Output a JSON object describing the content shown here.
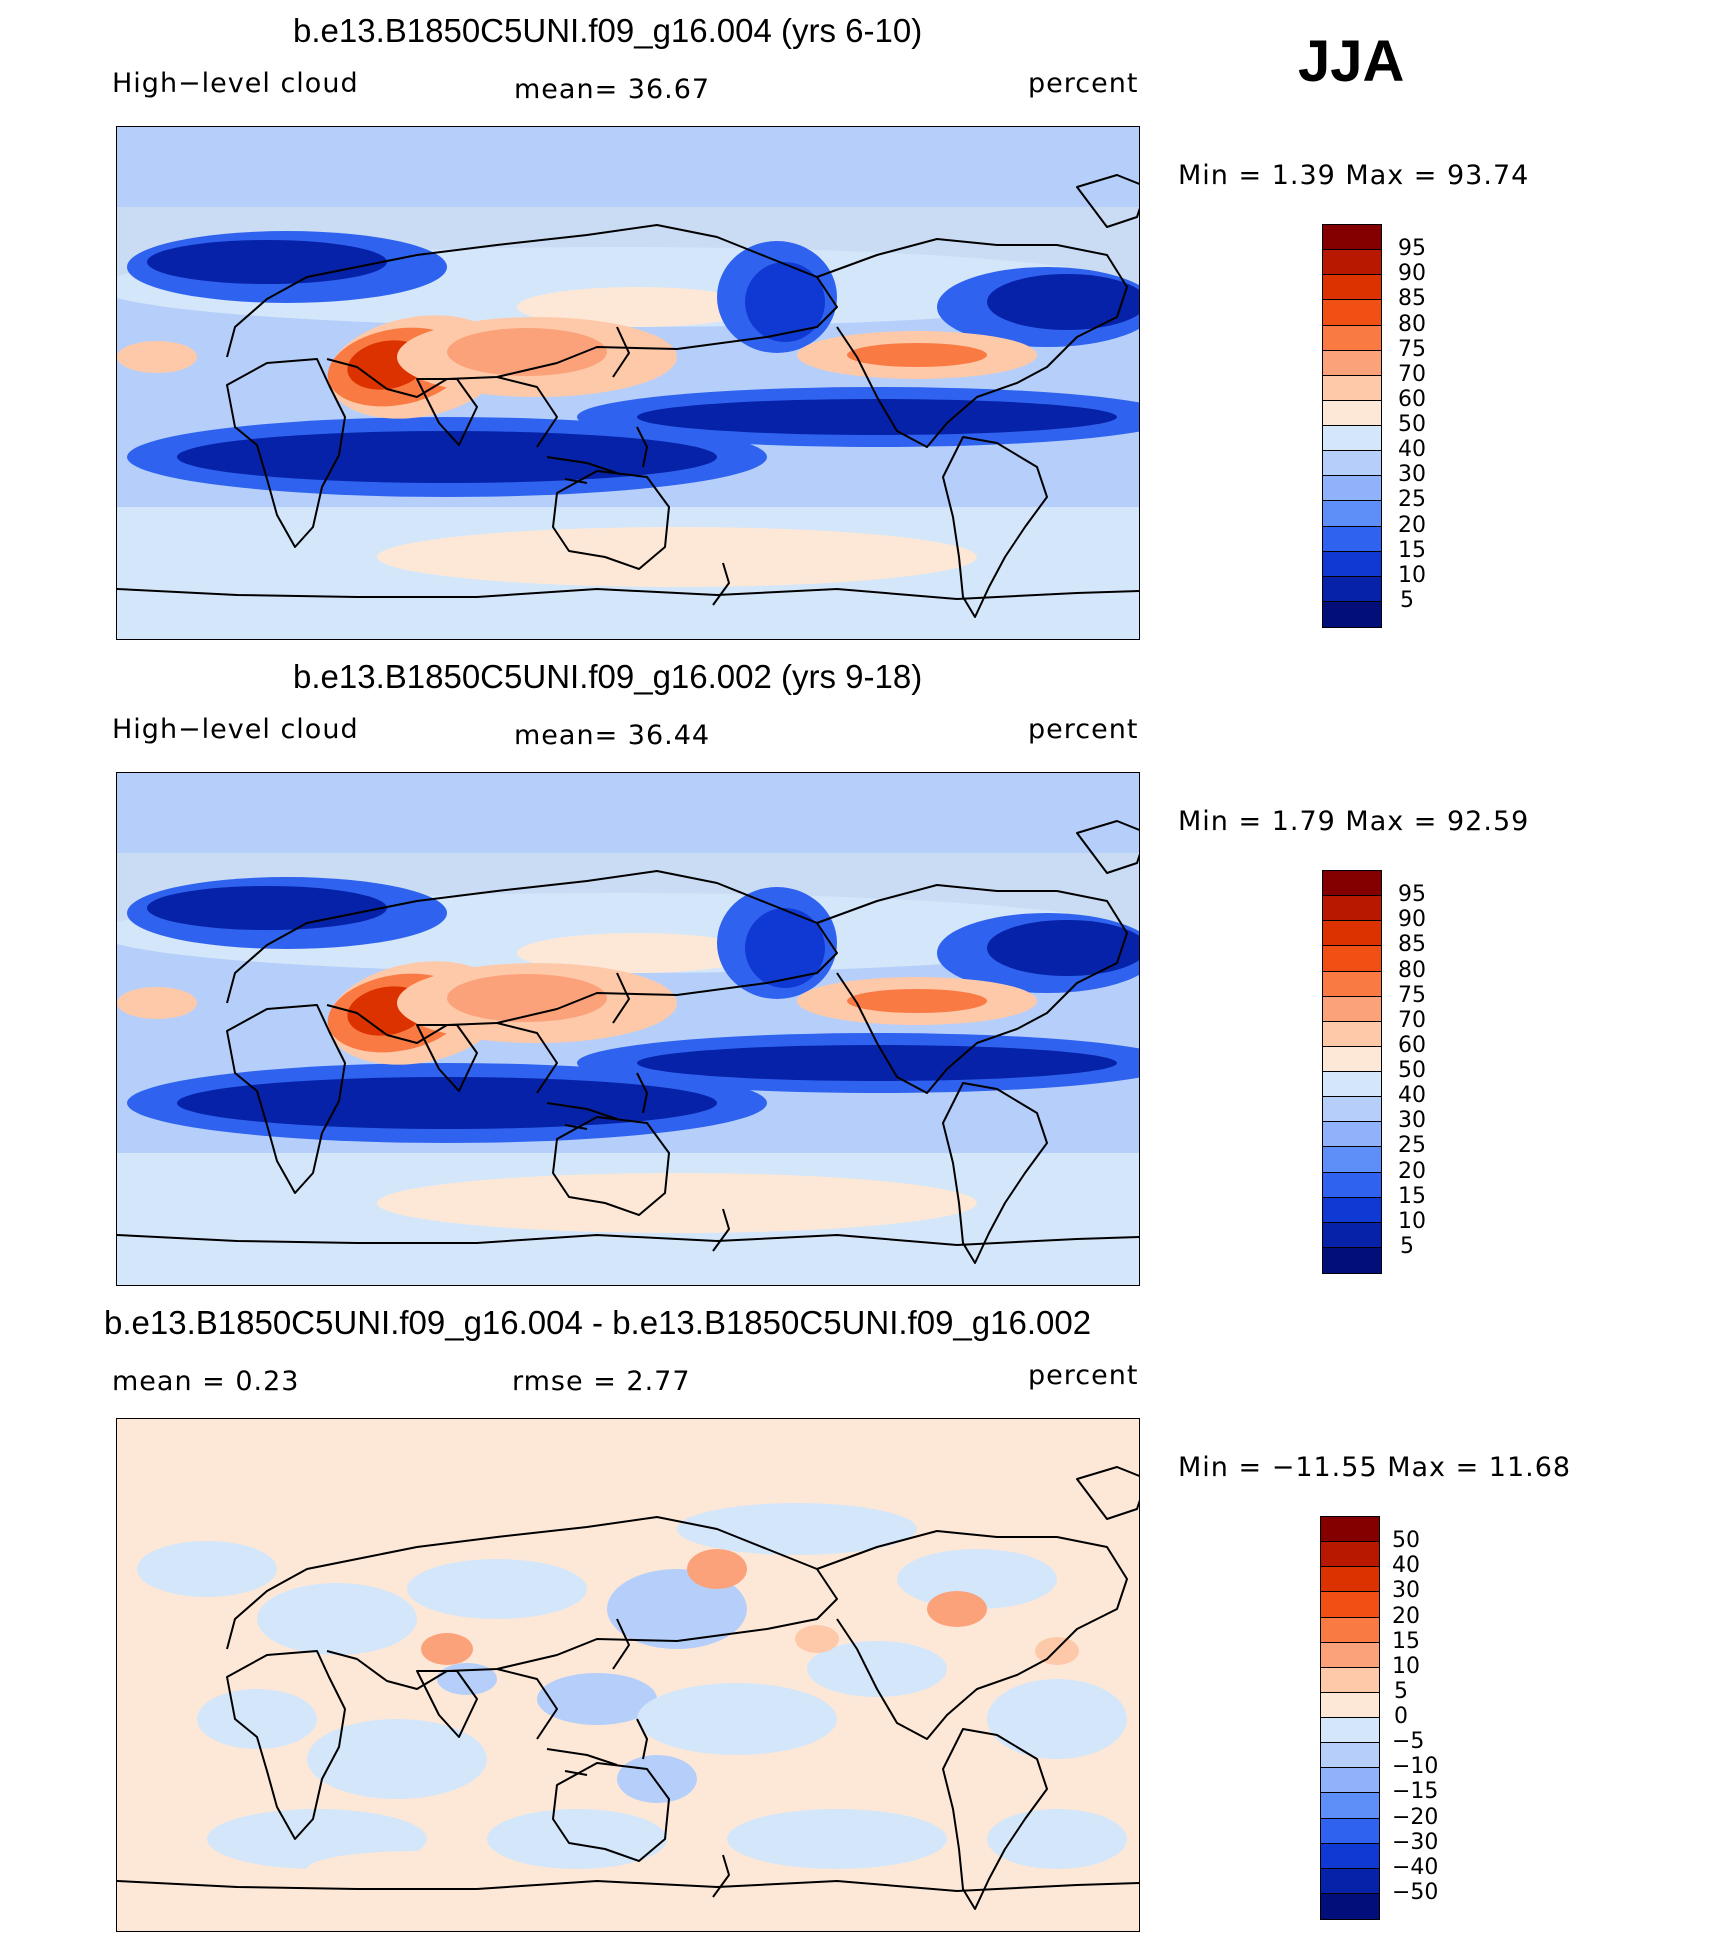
{
  "season": "JJA",
  "panels": [
    {
      "title": "b.e13.B1850C5UNI.f09_g16.004 (yrs 6-10)",
      "left_label": "High−level cloud",
      "mid_label": "mean=   36.67",
      "right_label": "percent",
      "minmax": "Min  =      1.39  Max  =    93.74",
      "colorbar_labels": [
        "95",
        "90",
        "85",
        "80",
        "75",
        "70",
        "60",
        "50",
        "40",
        "30",
        "25",
        "20",
        "15",
        "10",
        "5"
      ],
      "colorbar_colors": [
        "#840000",
        "#b81800",
        "#dc3200",
        "#f05014",
        "#fa7a44",
        "#fca27a",
        "#fdc9a9",
        "#fde8d8",
        "#d4e6f9",
        "#b5cffa",
        "#8fb2fb",
        "#5e8ef8",
        "#2f63ef",
        "#1039d3",
        "#0622a8",
        "#020f7a"
      ]
    },
    {
      "title": "b.e13.B1850C5UNI.f09_g16.002 (yrs 9-18)",
      "left_label": "High−level cloud",
      "mid_label": "mean=   36.44",
      "right_label": "percent",
      "minmax": "Min  =      1.79  Max  =    92.59",
      "colorbar_labels": [
        "95",
        "90",
        "85",
        "80",
        "75",
        "70",
        "60",
        "50",
        "40",
        "30",
        "25",
        "20",
        "15",
        "10",
        "5"
      ],
      "colorbar_colors": [
        "#840000",
        "#b81800",
        "#dc3200",
        "#f05014",
        "#fa7a44",
        "#fca27a",
        "#fdc9a9",
        "#fde8d8",
        "#d4e6f9",
        "#b5cffa",
        "#8fb2fb",
        "#5e8ef8",
        "#2f63ef",
        "#1039d3",
        "#0622a8",
        "#020f7a"
      ]
    },
    {
      "title": "b.e13.B1850C5UNI.f09_g16.004 - b.e13.B1850C5UNI.f09_g16.002",
      "left_label": "mean  =     0.23",
      "mid_label": "rmse  =     2.77",
      "right_label": "percent",
      "minmax": "Min  =  −11.55  Max  =    11.68",
      "colorbar_labels": [
        "50",
        "40",
        "30",
        "20",
        "15",
        "10",
        "5",
        "0",
        "−5",
        "−10",
        "−15",
        "−20",
        "−30",
        "−40",
        "−50"
      ],
      "colorbar_colors": [
        "#840000",
        "#b81800",
        "#dc3200",
        "#f05014",
        "#fa7a44",
        "#fca27a",
        "#fdc9a9",
        "#fde8d8",
        "#d4e6f9",
        "#b5cffa",
        "#8fb2fb",
        "#5e8ef8",
        "#2f63ef",
        "#1039d3",
        "#0622a8",
        "#020f7a"
      ]
    }
  ]
}
